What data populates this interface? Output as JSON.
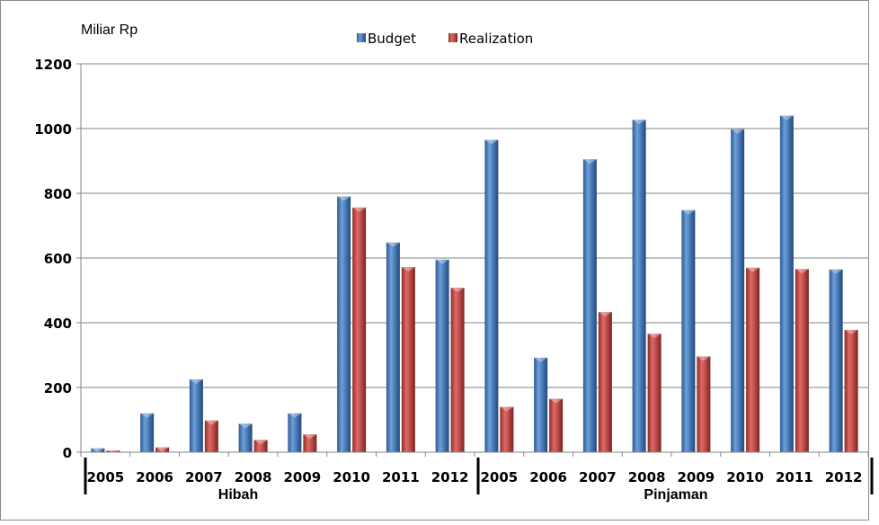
{
  "chart_data": {
    "type": "bar",
    "unit_label": "Miliar Rp",
    "groups": [
      {
        "name": "Hibah",
        "categories": [
          "2005",
          "2006",
          "2007",
          "2008",
          "2009",
          "2010",
          "2011",
          "2012"
        ]
      },
      {
        "name": "Pinjaman",
        "categories": [
          "2005",
          "2006",
          "2007",
          "2008",
          "2009",
          "2010",
          "2011",
          "2012"
        ]
      }
    ],
    "categories": [
      "2005",
      "2006",
      "2007",
      "2008",
      "2009",
      "2010",
      "2011",
      "2012",
      "2005",
      "2006",
      "2007",
      "2008",
      "2009",
      "2010",
      "2011",
      "2012"
    ],
    "series": [
      {
        "name": "Budget",
        "color": "#4a7ebb",
        "values": [
          12,
          120,
          225,
          88,
          120,
          790,
          648,
          595,
          965,
          292,
          905,
          1027,
          748,
          998,
          1040,
          565
        ]
      },
      {
        "name": "Realization",
        "color": "#c0504d",
        "values": [
          5,
          15,
          98,
          38,
          55,
          756,
          572,
          508,
          140,
          165,
          433,
          366,
          296,
          570,
          566,
          378
        ]
      }
    ],
    "yticks": [
      0,
      200,
      400,
      600,
      800,
      1000,
      1200
    ],
    "ylim": [
      0,
      1200
    ],
    "grid": true,
    "legend_position": "top-center"
  }
}
